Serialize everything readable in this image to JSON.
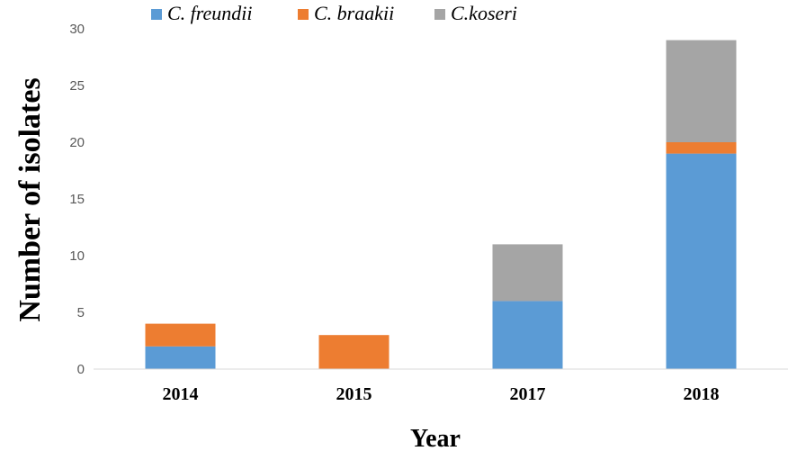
{
  "chart_data": {
    "type": "bar",
    "stacked": true,
    "categories": [
      "2014",
      "2015",
      "2017",
      "2018"
    ],
    "series": [
      {
        "name": "C. freundii",
        "values": [
          2,
          0,
          6,
          19
        ],
        "color": "#5b9bd5"
      },
      {
        "name": "C. braakii",
        "values": [
          2,
          3,
          0,
          1
        ],
        "color": "#ed7d31"
      },
      {
        "name": "C.koseri",
        "values": [
          0,
          0,
          5,
          9
        ],
        "color": "#a5a5a5"
      }
    ],
    "title": "",
    "xlabel": "Year",
    "ylabel": "Number of isolates",
    "ylim": [
      0,
      30
    ],
    "yticks": [
      0,
      5,
      10,
      15,
      20,
      25,
      30
    ],
    "grid": false,
    "legend_position": "top"
  }
}
